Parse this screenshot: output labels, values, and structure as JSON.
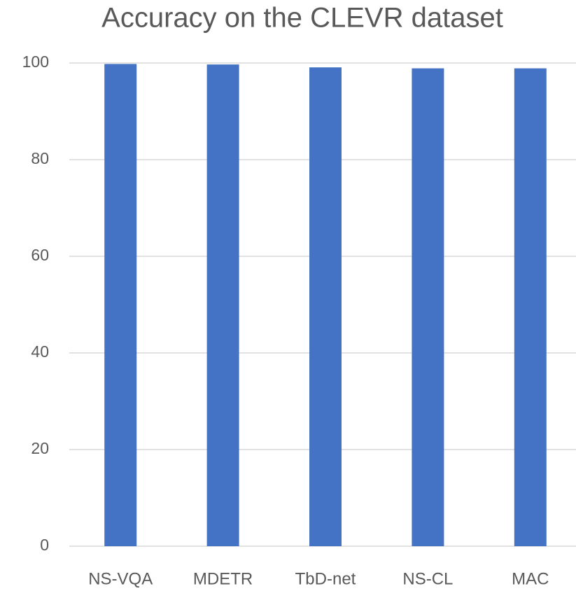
{
  "chart_data": {
    "type": "bar",
    "title": "Accuracy on the CLEVR dataset",
    "categories": [
      "NS-VQA",
      "MDETR",
      "TbD-net",
      "NS-CL",
      "MAC"
    ],
    "values": [
      99.8,
      99.7,
      99.1,
      98.9,
      98.9
    ],
    "color": "#4472c4",
    "ylim": [
      0,
      100
    ],
    "yticks": [
      0,
      20,
      40,
      60,
      80,
      100
    ],
    "grid": true
  }
}
